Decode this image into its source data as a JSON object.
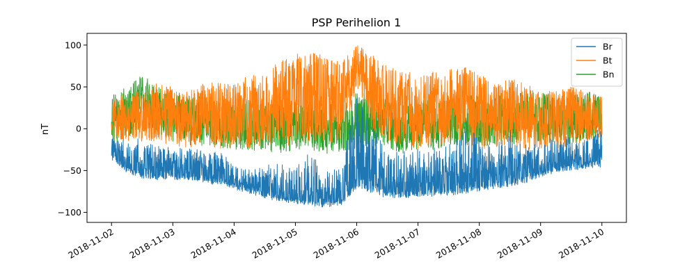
{
  "chart_data": {
    "type": "line",
    "title": "PSP Perihelion 1",
    "xlabel": "",
    "ylabel": "nT",
    "xlim": [
      -0.4,
      8.4
    ],
    "ylim": [
      -112,
      114
    ],
    "grid": false,
    "legend_position": "top-right",
    "x_start_label": "2018-11-02",
    "x_ticks": [
      0,
      1,
      2,
      3,
      4,
      5,
      6,
      7,
      8
    ],
    "x_tick_labels": [
      "2018-11-02",
      "2018-11-03",
      "2018-11-04",
      "2018-11-05",
      "2018-11-06",
      "2018-11-07",
      "2018-11-08",
      "2018-11-09",
      "2018-11-10"
    ],
    "y_ticks": [
      -100,
      -50,
      0,
      50,
      100
    ],
    "y_tick_labels": [
      "−100",
      "−50",
      "0",
      "50",
      "100"
    ],
    "x_unit": "days since 2018-11-02",
    "series": [
      {
        "name": "Br",
        "color": "#1f77b4",
        "x": [
          0,
          0.25,
          0.5,
          0.75,
          1,
          1.25,
          1.5,
          1.75,
          2,
          2.25,
          2.5,
          2.75,
          3,
          3.25,
          3.5,
          3.75,
          4,
          4.25,
          4.5,
          4.75,
          5,
          5.25,
          5.5,
          5.75,
          6,
          6.25,
          6.5,
          6.75,
          7,
          7.25,
          7.5,
          7.75,
          8
        ],
        "baseline": [
          -35,
          -50,
          -58,
          -60,
          -58,
          -60,
          -62,
          -65,
          -70,
          -75,
          -80,
          -85,
          -88,
          -90,
          -92,
          -90,
          -70,
          -75,
          -80,
          -80,
          -80,
          -78,
          -78,
          -75,
          -72,
          -70,
          -68,
          -62,
          -55,
          -50,
          -48,
          -45,
          -45
        ],
        "upper": [
          -5,
          -10,
          -15,
          -20,
          -25,
          -25,
          -25,
          -30,
          -40,
          -50,
          -45,
          -45,
          -45,
          -30,
          -50,
          -40,
          40,
          10,
          -30,
          -30,
          -20,
          -25,
          -20,
          10,
          -10,
          -20,
          0,
          -20,
          -20,
          -10,
          -10,
          -10,
          0
        ]
      },
      {
        "name": "Bt",
        "color": "#ff7f0e",
        "x": [
          0,
          0.25,
          0.5,
          0.75,
          1,
          1.25,
          1.5,
          1.75,
          2,
          2.25,
          2.5,
          2.75,
          3,
          3.25,
          3.5,
          3.75,
          4,
          4.25,
          4.5,
          4.75,
          5,
          5.25,
          5.5,
          5.75,
          6,
          6.25,
          6.5,
          6.75,
          7,
          7.25,
          7.5,
          7.75,
          8
        ],
        "center": [
          10,
          15,
          15,
          20,
          15,
          10,
          20,
          15,
          15,
          20,
          25,
          30,
          35,
          40,
          35,
          30,
          75,
          45,
          30,
          25,
          20,
          25,
          25,
          30,
          20,
          15,
          20,
          15,
          10,
          10,
          15,
          15,
          15
        ],
        "amplitude": [
          25,
          30,
          30,
          35,
          35,
          35,
          35,
          40,
          40,
          45,
          45,
          50,
          55,
          55,
          50,
          50,
          25,
          45,
          45,
          45,
          45,
          45,
          45,
          45,
          45,
          40,
          40,
          40,
          35,
          35,
          35,
          30,
          25
        ]
      },
      {
        "name": "Bn",
        "color": "#2ca02c",
        "x": [
          0,
          0.25,
          0.5,
          0.75,
          1,
          1.25,
          1.5,
          1.75,
          2,
          2.25,
          2.5,
          2.75,
          3,
          3.25,
          3.5,
          3.75,
          4,
          4.25,
          4.5,
          4.75,
          5,
          5.25,
          5.5,
          5.75,
          6,
          6.25,
          6.5,
          6.75,
          7,
          7.25,
          7.5,
          7.75,
          8
        ],
        "center": [
          10,
          20,
          30,
          20,
          15,
          10,
          10,
          5,
          5,
          5,
          0,
          0,
          5,
          5,
          0,
          0,
          10,
          10,
          5,
          0,
          5,
          5,
          10,
          10,
          10,
          10,
          10,
          15,
          15,
          10,
          10,
          15,
          15
        ],
        "amplitude": [
          30,
          30,
          35,
          30,
          30,
          30,
          30,
          30,
          30,
          30,
          30,
          30,
          30,
          30,
          30,
          30,
          35,
          30,
          30,
          30,
          30,
          30,
          30,
          30,
          30,
          30,
          30,
          30,
          30,
          30,
          30,
          30,
          25
        ]
      }
    ]
  }
}
